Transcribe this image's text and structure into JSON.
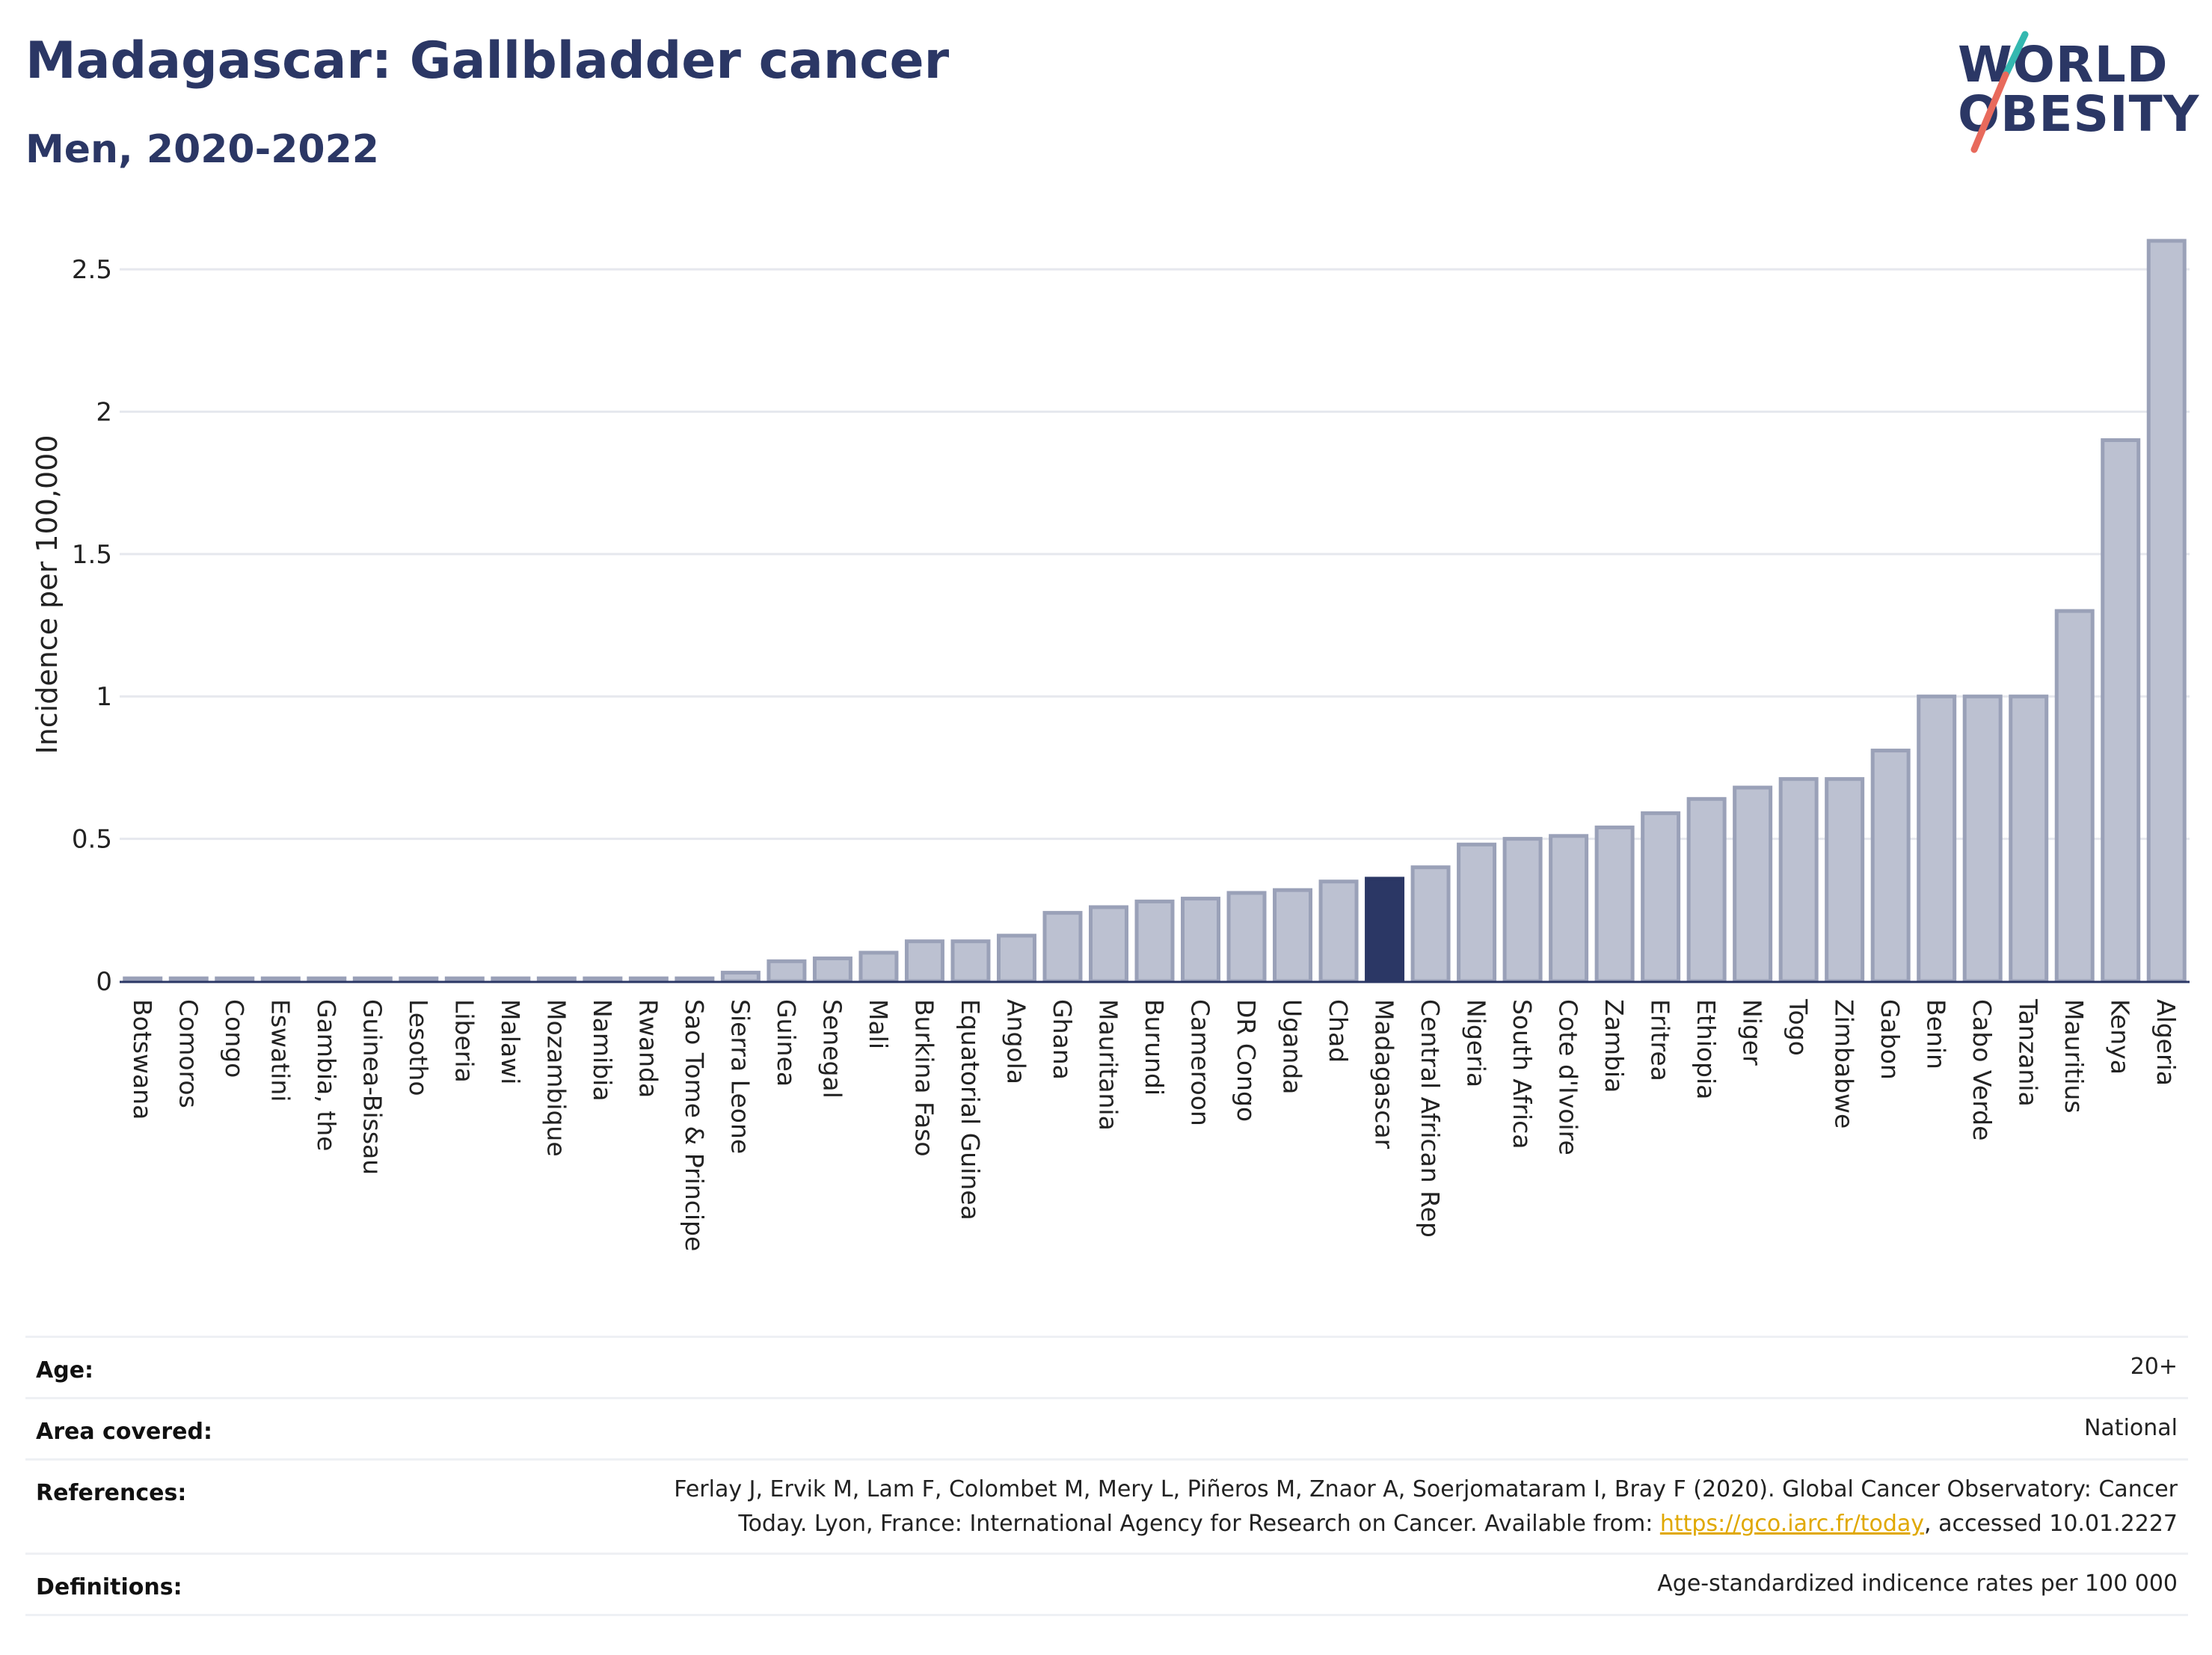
{
  "header": {
    "title": "Madagascar: Gallbladder cancer",
    "subtitle": "Men, 2020-2022"
  },
  "logo": {
    "line1": "WORLD",
    "line2": "OBESITY"
  },
  "colors": {
    "bar": "#bcc1d1",
    "bar_border": "#9aa1b8",
    "highlight": "#2b3765",
    "logo_teal": "#34b8b0",
    "logo_red": "#e86a5c"
  },
  "chart_data": {
    "type": "bar",
    "ylabel": "Incidence per 100,000",
    "ylim": [
      0,
      2.6
    ],
    "yticks": [
      0,
      0.5,
      1,
      1.5,
      2,
      2.5
    ],
    "ytick_labels": [
      "0",
      "0.5",
      "1",
      "1.5",
      "2",
      "2.5"
    ],
    "grid": true,
    "highlight": "Madagascar",
    "categories": [
      "Botswana",
      "Comoros",
      "Congo",
      "Eswatini",
      "Gambia, the",
      "Guinea-Bissau",
      "Lesotho",
      "Liberia",
      "Malawi",
      "Mozambique",
      "Namibia",
      "Rwanda",
      "Sao Tome & Principe",
      "Sierra Leone",
      "Guinea",
      "Senegal",
      "Mali",
      "Burkina Faso",
      "Equatorial Guinea",
      "Angola",
      "Ghana",
      "Mauritania",
      "Burundi",
      "Cameroon",
      "DR Congo",
      "Uganda",
      "Chad",
      "Madagascar",
      "Central African Rep",
      "Nigeria",
      "South Africa",
      "Cote d'Ivoire",
      "Zambia",
      "Eritrea",
      "Ethiopia",
      "Niger",
      "Togo",
      "Zimbabwe",
      "Gabon",
      "Benin",
      "Cabo Verde",
      "Tanzania",
      "Mauritius",
      "Kenya",
      "Algeria"
    ],
    "values": [
      0.01,
      0.01,
      0.01,
      0.01,
      0.01,
      0.01,
      0.01,
      0.01,
      0.01,
      0.01,
      0.01,
      0.01,
      0.01,
      0.03,
      0.07,
      0.08,
      0.1,
      0.14,
      0.14,
      0.16,
      0.24,
      0.26,
      0.28,
      0.29,
      0.31,
      0.32,
      0.35,
      0.36,
      0.4,
      0.48,
      0.5,
      0.51,
      0.54,
      0.59,
      0.64,
      0.68,
      0.71,
      0.71,
      0.81,
      1.0,
      1.0,
      1.0,
      1.3,
      1.9,
      2.6
    ]
  },
  "meta": {
    "age_label": "Age:",
    "age_value": "20+",
    "area_label": "Area covered:",
    "area_value": "National",
    "references_label": "References:",
    "references_line1": "Ferlay J, Ervik M, Lam F, Colombet M, Mery L, Piñeros M, Znaor A, Soerjomataram I, Bray F (2020). Global Cancer Observatory: Cancer",
    "references_line2_pre": "Today. Lyon, France: International Agency for Research on Cancer. Available from: ",
    "references_link": "https://gco.iarc.fr/today",
    "references_line2_post": ", accessed 10.01.2227",
    "definitions_label": "Definitions:",
    "definitions_value": "Age-standardized indicence rates per 100 000"
  }
}
